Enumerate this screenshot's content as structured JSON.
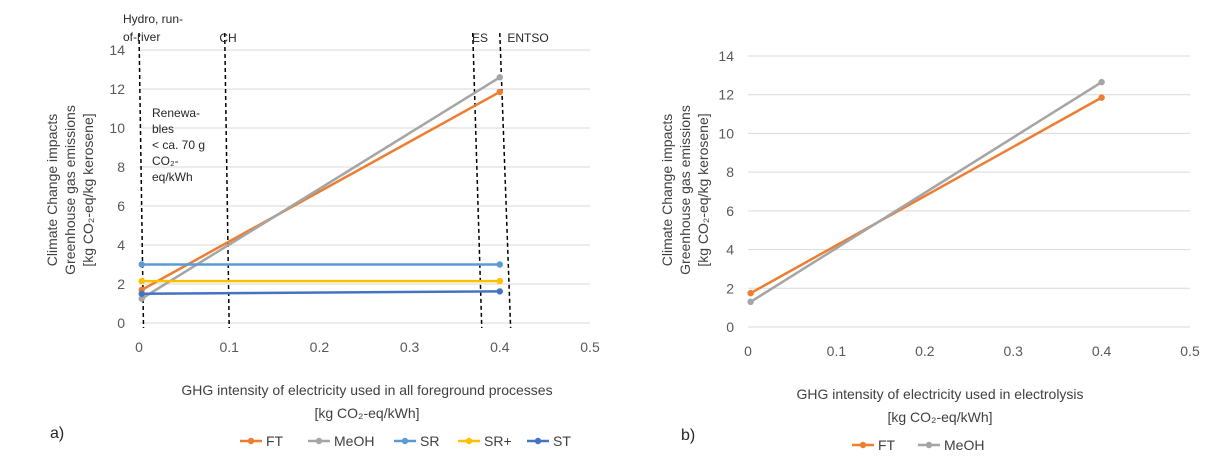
{
  "chart_data": [
    {
      "type": "line",
      "panel_label": "a)",
      "title": "",
      "xlabel": [
        "GHG intensity of electricity used in all foreground processes",
        "[kg CO₂-eq/kWh]"
      ],
      "ylabel": [
        "Climate Change impacts",
        "Greenhouse gas emissions",
        "[kg CO₂-eq/kg kerosene]"
      ],
      "xlim": [
        0,
        0.5
      ],
      "ylim": [
        0,
        14
      ],
      "xticks": [
        "0",
        "0.1",
        "0.2",
        "0.3",
        "0.4",
        "0.5"
      ],
      "yticks": [
        "0",
        "2",
        "4",
        "6",
        "8",
        "10",
        "12",
        "14"
      ],
      "grid": "horizontal",
      "legend_position": "bottom",
      "series": [
        {
          "name": "FT",
          "color": "#ed7d31",
          "x": [
            0.003,
            0.4
          ],
          "y": [
            1.7,
            11.85
          ]
        },
        {
          "name": "MeOH",
          "color": "#a5a5a5",
          "x": [
            0.003,
            0.4
          ],
          "y": [
            1.25,
            12.6
          ]
        },
        {
          "name": "SR",
          "color": "#5b9bd5",
          "x": [
            0.003,
            0.4
          ],
          "y": [
            3.0,
            3.0
          ]
        },
        {
          "name": "SR+",
          "color": "#ffc000",
          "x": [
            0.003,
            0.4
          ],
          "y": [
            2.15,
            2.15
          ]
        },
        {
          "name": "ST",
          "color": "#4472c4",
          "x": [
            0.003,
            0.4
          ],
          "y": [
            1.5,
            1.62
          ]
        }
      ],
      "reference_lines": [
        {
          "label": [
            "Hydro, run-",
            "of-river"
          ],
          "x_top": 0,
          "x_bottom": 0.005
        },
        {
          "label": [
            "CH"
          ],
          "x_top": 0.095,
          "x_bottom": 0.1
        },
        {
          "label": [
            "ES"
          ],
          "x_top": 0.37,
          "x_bottom": 0.38
        },
        {
          "label": [
            "ENTSO"
          ],
          "x_top": 0.4,
          "x_bottom": 0.412
        }
      ],
      "annotation": [
        "Renewa-",
        "bles",
        "< ca. 70 g",
        "CO₂-",
        "eq/kWh"
      ]
    },
    {
      "type": "line",
      "panel_label": "b)",
      "title": "",
      "xlabel": [
        "GHG intensity of electricity used in electrolysis",
        "[kg CO₂-eq/kWh]"
      ],
      "ylabel": [
        "Climate Change impacts",
        "Greenhouse gas emissions",
        "[kg CO₂-eq/kg kerosene]"
      ],
      "xlim": [
        0,
        0.5
      ],
      "ylim": [
        0,
        14
      ],
      "xticks": [
        "0",
        "0.1",
        "0.2",
        "0.3",
        "0.4",
        "0.5"
      ],
      "yticks": [
        "0",
        "2",
        "4",
        "6",
        "8",
        "10",
        "12",
        "14"
      ],
      "grid": "horizontal",
      "legend_position": "bottom",
      "series": [
        {
          "name": "FT",
          "color": "#ed7d31",
          "x": [
            0.003,
            0.4
          ],
          "y": [
            1.75,
            11.85
          ]
        },
        {
          "name": "MeOH",
          "color": "#a5a5a5",
          "x": [
            0.003,
            0.4
          ],
          "y": [
            1.3,
            12.65
          ]
        }
      ]
    }
  ]
}
